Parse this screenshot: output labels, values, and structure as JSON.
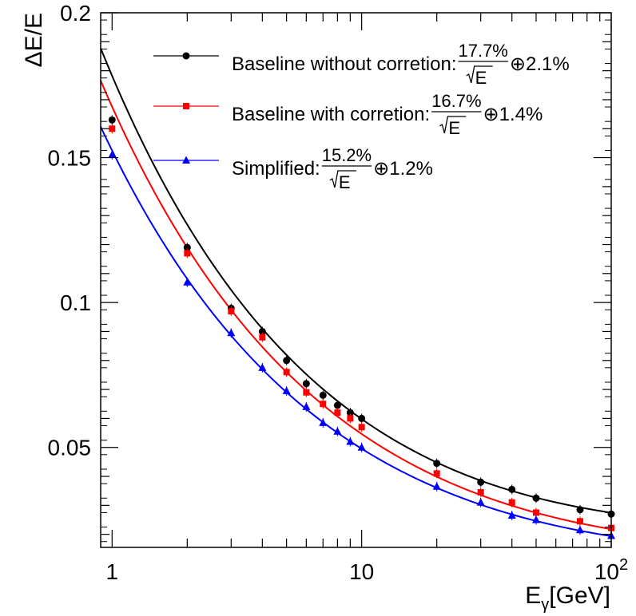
{
  "chart_data": {
    "type": "scatter",
    "title": "",
    "xscale": "log",
    "xlim": [
      0.9,
      100
    ],
    "ylim": [
      0.0155,
      0.2
    ],
    "xlabel": {
      "main": "E",
      "sub": "γ",
      "unit": "[GeV]"
    },
    "ylabel": "ΔE/E",
    "x_tick_labels": [
      {
        "value": 1,
        "label": "1"
      },
      {
        "value": 10,
        "label": "10"
      },
      {
        "value": 100,
        "label": "10",
        "exp": "2"
      }
    ],
    "y_tick_labels": [
      {
        "value": 0.05,
        "label": "0.05"
      },
      {
        "value": 0.1,
        "label": "0.1"
      },
      {
        "value": 0.15,
        "label": "0.15"
      },
      {
        "value": 0.2,
        "label": "0.2"
      }
    ],
    "series": [
      {
        "name": "Baseline without corretion",
        "color": "#000000",
        "marker": "circle",
        "fit": {
          "stochastic": 0.177,
          "constant": 0.021
        },
        "legend": {
          "prefix": "Baseline without corretion:",
          "numerator": "17.7%",
          "denominator": "E",
          "suffix": "⊕2.1%"
        },
        "x": [
          1,
          2,
          3,
          4,
          5,
          6,
          7,
          8,
          9,
          10,
          20,
          30,
          40,
          50,
          75,
          100
        ],
        "y": [
          0.163,
          0.119,
          0.098,
          0.09,
          0.08,
          0.072,
          0.068,
          0.0645,
          0.062,
          0.06,
          0.0445,
          0.038,
          0.0355,
          0.0325,
          0.0285,
          0.027
        ]
      },
      {
        "name": "Baseline with corretion",
        "color": "#ff0000",
        "marker": "square",
        "fit": {
          "stochastic": 0.167,
          "constant": 0.014
        },
        "legend": {
          "prefix": "Baseline with corretion:",
          "numerator": "16.7%",
          "denominator": "E",
          "suffix": "⊕1.4%"
        },
        "x": [
          1,
          2,
          3,
          4,
          5,
          6,
          7,
          8,
          9,
          10,
          20,
          30,
          40,
          50,
          75,
          100
        ],
        "y": [
          0.16,
          0.117,
          0.097,
          0.088,
          0.076,
          0.069,
          0.065,
          0.062,
          0.06,
          0.057,
          0.041,
          0.0345,
          0.031,
          0.0275,
          0.0245,
          0.0222
        ]
      },
      {
        "name": "Simplified",
        "color": "#0000ff",
        "marker": "triangle",
        "fit": {
          "stochastic": 0.152,
          "constant": 0.012
        },
        "legend": {
          "prefix": "Simplified:",
          "numerator": "15.2%",
          "denominator": "E",
          "suffix": "⊕1.2%"
        },
        "x": [
          1,
          2,
          3,
          4,
          5,
          6,
          7,
          8,
          9,
          10,
          20,
          30,
          40,
          50,
          75,
          100
        ],
        "y": [
          0.151,
          0.107,
          0.0895,
          0.0775,
          0.0695,
          0.064,
          0.0585,
          0.0555,
          0.052,
          0.05,
          0.0365,
          0.031,
          0.0265,
          0.025,
          0.0215,
          0.0195
        ]
      }
    ]
  }
}
